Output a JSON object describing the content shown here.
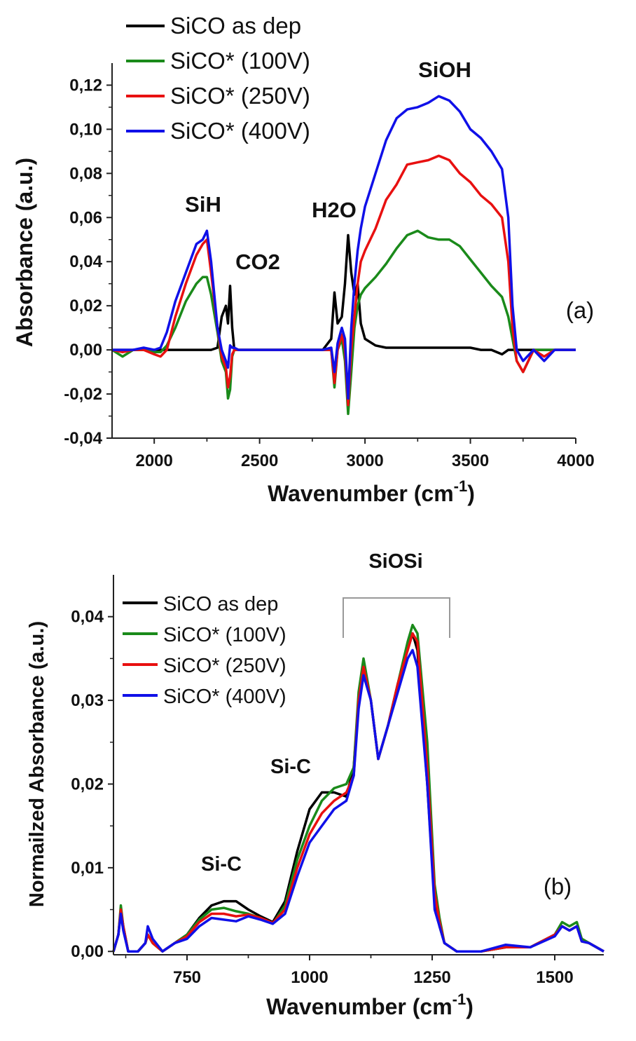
{
  "colors": {
    "as_dep": "#000000",
    "v100": "#1a8a1a",
    "v250": "#e81010",
    "v400": "#1010e8"
  },
  "chart_data": [
    {
      "type": "line",
      "panel_label": "(a)",
      "xlabel": "Wavenumber (cm",
      "xlabel_sup": "-1",
      "xlabel_end": ")",
      "ylabel": "Absorbance (a.u.)",
      "xlim": [
        1800,
        4000
      ],
      "ylim": [
        -0.04,
        0.13
      ],
      "xticks": [
        2000,
        2500,
        3000,
        3500,
        4000
      ],
      "xtick_labels": [
        "2000",
        "2500",
        "3000",
        "3500",
        "4000"
      ],
      "yticks": [
        -0.04,
        -0.02,
        0,
        0.02,
        0.04,
        0.06,
        0.08,
        0.1,
        0.12
      ],
      "ytick_labels": [
        "-0,04",
        "-0,02",
        "0,00",
        "0,02",
        "0,04",
        "0,06",
        "0,08",
        "0,10",
        "0,12"
      ],
      "legend_position": "top-left",
      "annotations": [
        "SiH",
        "CO2",
        "H2O",
        "SiOH"
      ],
      "x": [
        1800,
        1850,
        1900,
        1950,
        2000,
        2030,
        2060,
        2100,
        2150,
        2200,
        2230,
        2250,
        2270,
        2300,
        2320,
        2340,
        2350,
        2360,
        2370,
        2380,
        2400,
        2500,
        2600,
        2700,
        2800,
        2840,
        2855,
        2870,
        2890,
        2905,
        2920,
        2935,
        2950,
        2965,
        2980,
        3000,
        3050,
        3100,
        3150,
        3200,
        3250,
        3300,
        3350,
        3400,
        3450,
        3500,
        3550,
        3600,
        3650,
        3680,
        3700,
        3720,
        3750,
        3800,
        3850,
        3900,
        4000
      ],
      "series": [
        {
          "name": "SiCO as dep",
          "color_key": "as_dep",
          "values": [
            0,
            0,
            0,
            0,
            0,
            0,
            0,
            0,
            0,
            0,
            0,
            0,
            0,
            0.001,
            0.015,
            0.02,
            0.012,
            0.029,
            0.01,
            0,
            0,
            0,
            0,
            0,
            0,
            0.005,
            0.026,
            0.012,
            0.015,
            0.03,
            0.052,
            0.035,
            0.025,
            0.03,
            0.012,
            0.005,
            0.002,
            0.001,
            0.001,
            0.001,
            0.001,
            0.001,
            0.001,
            0.001,
            0.001,
            0.001,
            0,
            0,
            -0.002,
            0,
            0,
            0,
            0,
            0,
            0,
            0,
            0
          ]
        },
        {
          "name": "SiCO* (100V)",
          "color_key": "v100",
          "values": [
            0,
            -0.003,
            0,
            0,
            -0.001,
            -0.001,
            0.002,
            0.01,
            0.022,
            0.03,
            0.033,
            0.033,
            0.025,
            0.008,
            -0.005,
            -0.01,
            -0.022,
            -0.018,
            -0.003,
            0,
            0,
            0,
            0,
            0,
            0,
            0,
            -0.017,
            0,
            0.005,
            -0.005,
            -0.029,
            -0.01,
            0.01,
            0.02,
            0.025,
            0.028,
            0.033,
            0.039,
            0.046,
            0.052,
            0.054,
            0.051,
            0.05,
            0.05,
            0.047,
            0.041,
            0.035,
            0.029,
            0.024,
            0.015,
            0.005,
            -0.005,
            -0.01,
            0,
            0,
            0,
            0
          ]
        },
        {
          "name": "SiCO* (250V)",
          "color_key": "v250",
          "values": [
            0,
            -0.001,
            0,
            0,
            -0.002,
            -0.003,
            0,
            0.015,
            0.03,
            0.043,
            0.048,
            0.05,
            0.035,
            0.01,
            -0.003,
            -0.008,
            -0.017,
            -0.012,
            -0.002,
            0,
            0,
            0,
            0,
            0,
            0,
            0,
            -0.015,
            0,
            0.007,
            0,
            -0.025,
            0,
            0.015,
            0.03,
            0.04,
            0.045,
            0.055,
            0.068,
            0.075,
            0.084,
            0.085,
            0.086,
            0.088,
            0.086,
            0.08,
            0.076,
            0.07,
            0.066,
            0.06,
            0.04,
            0.01,
            -0.005,
            -0.01,
            0,
            -0.003,
            0,
            0
          ]
        },
        {
          "name": "SiCO* (400V)",
          "color_key": "v400",
          "values": [
            0,
            0,
            0,
            0.001,
            0,
            0.001,
            0.008,
            0.022,
            0.035,
            0.048,
            0.05,
            0.054,
            0.04,
            0.01,
            0,
            -0.005,
            -0.008,
            0.002,
            0.001,
            0.001,
            0,
            0,
            0,
            0,
            0,
            0.001,
            -0.01,
            0.003,
            0.01,
            0.005,
            -0.022,
            0.01,
            0.03,
            0.045,
            0.055,
            0.065,
            0.08,
            0.095,
            0.105,
            0.109,
            0.11,
            0.112,
            0.115,
            0.113,
            0.108,
            0.1,
            0.096,
            0.09,
            0.082,
            0.06,
            0.02,
            0,
            -0.005,
            0,
            -0.005,
            0,
            0
          ]
        }
      ]
    },
    {
      "type": "line",
      "panel_label": "(b)",
      "xlabel": "Wavenumber (cm",
      "xlabel_sup": "-1",
      "xlabel_end": ")",
      "ylabel": "Normailzed Absorbance (a.u.)",
      "xlim": [
        600,
        1600
      ],
      "ylim": [
        -0.0004,
        0.045
      ],
      "xticks": [
        750,
        1000,
        1250,
        1500
      ],
      "xtick_labels": [
        "750",
        "1000",
        "1250",
        "1500"
      ],
      "yticks": [
        0,
        0.01,
        0.02,
        0.03,
        0.04
      ],
      "ytick_labels": [
        "0,00",
        "0,01",
        "0,02",
        "0,03",
        "0,04"
      ],
      "legend_position": "top-left",
      "annotations": [
        "SiOSi",
        "Si-C",
        "Si-C"
      ],
      "x": [
        600,
        610,
        615,
        620,
        630,
        650,
        665,
        670,
        680,
        700,
        725,
        750,
        775,
        800,
        825,
        850,
        875,
        900,
        925,
        950,
        975,
        1000,
        1025,
        1050,
        1075,
        1090,
        1100,
        1110,
        1125,
        1140,
        1160,
        1180,
        1200,
        1210,
        1220,
        1240,
        1255,
        1265,
        1275,
        1300,
        1350,
        1400,
        1450,
        1500,
        1515,
        1530,
        1545,
        1555,
        1570,
        1600
      ],
      "series": [
        {
          "name": "SiCO as dep",
          "color_key": "as_dep",
          "values": [
            0,
            0.002,
            0.005,
            0.003,
            0,
            0,
            0.001,
            0.002,
            0.001,
            0,
            0.001,
            0.002,
            0.004,
            0.0055,
            0.006,
            0.006,
            0.005,
            0.0042,
            0.0035,
            0.006,
            0.012,
            0.017,
            0.019,
            0.019,
            0.0185,
            0.022,
            0.03,
            0.034,
            0.03,
            0.023,
            0.027,
            0.032,
            0.036,
            0.038,
            0.036,
            0.02,
            0.006,
            0.003,
            0.001,
            0,
            0,
            0.0005,
            0.0005,
            0.002,
            0.003,
            0.0025,
            0.003,
            0.0015,
            0.001,
            0
          ]
        },
        {
          "name": "SiCO* (100V)",
          "color_key": "v100",
          "values": [
            0,
            0.002,
            0.0055,
            0.003,
            0,
            0,
            0.001,
            0.002,
            0.001,
            0,
            0.001,
            0.002,
            0.0038,
            0.005,
            0.0052,
            0.0048,
            0.0045,
            0.004,
            0.0033,
            0.0055,
            0.011,
            0.015,
            0.018,
            0.0195,
            0.02,
            0.022,
            0.031,
            0.035,
            0.03,
            0.023,
            0.027,
            0.032,
            0.037,
            0.039,
            0.038,
            0.025,
            0.008,
            0.004,
            0.001,
            0,
            0,
            0.0005,
            0.0005,
            0.002,
            0.0035,
            0.003,
            0.0035,
            0.0015,
            0.001,
            0
          ]
        },
        {
          "name": "SiCO* (250V)",
          "color_key": "v250",
          "values": [
            0,
            0.002,
            0.005,
            0.003,
            0,
            0,
            0.001,
            0.002,
            0.001,
            0,
            0.001,
            0.0018,
            0.0035,
            0.0045,
            0.0045,
            0.0042,
            0.0044,
            0.004,
            0.0034,
            0.005,
            0.01,
            0.014,
            0.0165,
            0.018,
            0.019,
            0.021,
            0.03,
            0.034,
            0.03,
            0.023,
            0.027,
            0.032,
            0.036,
            0.038,
            0.037,
            0.022,
            0.007,
            0.0035,
            0.001,
            0,
            0,
            0.0005,
            0.0005,
            0.002,
            0.003,
            0.0025,
            0.003,
            0.0012,
            0.001,
            0
          ]
        },
        {
          "name": "SiCO* (400V)",
          "color_key": "v400",
          "values": [
            0,
            0.002,
            0.0045,
            0.0025,
            0,
            0,
            0.001,
            0.003,
            0.0015,
            0,
            0.001,
            0.0015,
            0.003,
            0.004,
            0.0038,
            0.0036,
            0.0042,
            0.0038,
            0.0033,
            0.0045,
            0.009,
            0.013,
            0.015,
            0.017,
            0.018,
            0.021,
            0.029,
            0.033,
            0.03,
            0.023,
            0.027,
            0.031,
            0.035,
            0.036,
            0.034,
            0.02,
            0.005,
            0.003,
            0.001,
            0,
            0,
            0.0008,
            0.0005,
            0.0018,
            0.003,
            0.0025,
            0.003,
            0.0012,
            0.001,
            0
          ]
        }
      ]
    }
  ]
}
